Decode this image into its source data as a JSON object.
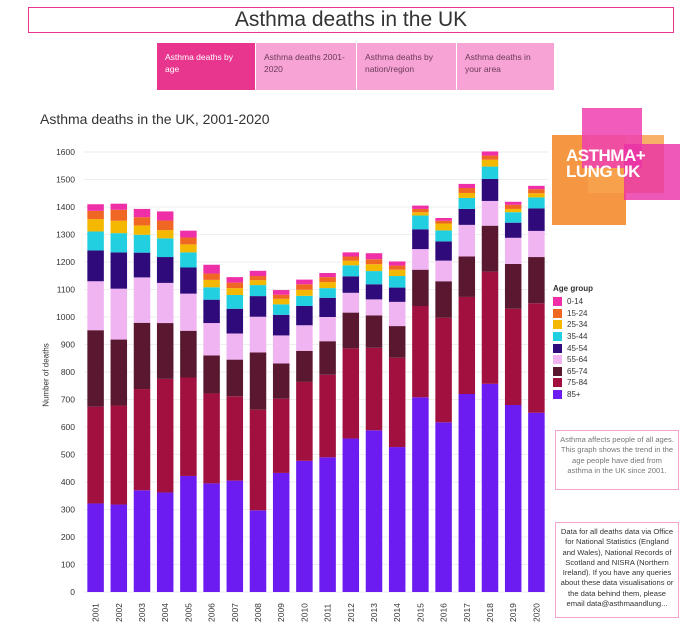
{
  "header": {
    "title": "Asthma deaths in the UK"
  },
  "tabs": [
    {
      "label": "Asthma deaths by age",
      "active": true
    },
    {
      "label": "Asthma deaths 2001-2020",
      "active": false
    },
    {
      "label": "Asthma deaths by nation/region",
      "active": false
    },
    {
      "label": "Asthma deaths in your area",
      "active": false
    }
  ],
  "logo": {
    "text": "ASTHMA+ LUNG UK"
  },
  "notes": {
    "description": "Asthma affects people of all ages. This graph shows the trend in the age people have died from asthma in the UK since 2001.",
    "sources": "Data for all deaths data via Office for National Statistics (England and Wales), National Records of Scotland and NISRA (Northern Ireland). If you have any queries about these data visualisations or the data behind them, please email data@asthmaandlung..."
  },
  "chart_data": {
    "type": "bar",
    "stacked": true,
    "title": "Asthma deaths in the UK, 2001-2020",
    "xlabel": "",
    "ylabel": "Number of deaths",
    "ylim": [
      0,
      1600
    ],
    "yticks": [
      0,
      100,
      200,
      300,
      400,
      500,
      600,
      700,
      800,
      900,
      1000,
      1100,
      1200,
      1300,
      1400,
      1500,
      1600
    ],
    "grid": true,
    "legend_title": "Age group",
    "legend_position": "right",
    "categories": [
      "2001",
      "2002",
      "2003",
      "2004",
      "2005",
      "2006",
      "2007",
      "2008",
      "2009",
      "2010",
      "2011",
      "2012",
      "2013",
      "2014",
      "2015",
      "2016",
      "2017",
      "2018",
      "2019",
      "2020"
    ],
    "series": [
      {
        "name": "85+",
        "color": "#6c1cf0",
        "values": [
          322,
          318,
          370,
          362,
          422,
          395,
          405,
          297,
          433,
          477,
          490,
          558,
          588,
          527,
          708,
          617,
          720,
          757,
          680,
          652
        ]
      },
      {
        "name": "75-84",
        "color": "#a1103e",
        "values": [
          352,
          360,
          368,
          413,
          358,
          327,
          307,
          366,
          270,
          287,
          300,
          328,
          300,
          325,
          332,
          380,
          353,
          408,
          350,
          398
        ]
      },
      {
        "name": "65-74",
        "color": "#5a1730",
        "values": [
          278,
          240,
          241,
          203,
          170,
          138,
          133,
          208,
          128,
          113,
          122,
          130,
          118,
          115,
          132,
          133,
          147,
          167,
          163,
          168
        ]
      },
      {
        "name": "55-64",
        "color": "#f0b4f2",
        "values": [
          178,
          185,
          165,
          146,
          135,
          118,
          95,
          130,
          102,
          93,
          88,
          72,
          58,
          88,
          75,
          75,
          115,
          90,
          95,
          95
        ]
      },
      {
        "name": "45-54",
        "color": "#2f0a7a",
        "values": [
          112,
          132,
          90,
          94,
          95,
          85,
          90,
          75,
          75,
          70,
          70,
          60,
          55,
          52,
          72,
          70,
          58,
          80,
          55,
          82
        ]
      },
      {
        "name": "35-44",
        "color": "#22cfe0",
        "values": [
          69,
          70,
          65,
          68,
          55,
          45,
          50,
          40,
          38,
          37,
          35,
          40,
          48,
          42,
          50,
          40,
          40,
          45,
          38,
          40
        ]
      },
      {
        "name": "25-34",
        "color": "#f5b800",
        "values": [
          45,
          45,
          34,
          30,
          29,
          27,
          25,
          18,
          20,
          22,
          22,
          17,
          25,
          23,
          12,
          25,
          18,
          25,
          12,
          15
        ]
      },
      {
        "name": "15-24",
        "color": "#f06623",
        "values": [
          30,
          40,
          30,
          35,
          25,
          23,
          20,
          15,
          15,
          20,
          18,
          15,
          18,
          15,
          12,
          10,
          18,
          15,
          15,
          15
        ]
      },
      {
        "name": "0-14",
        "color": "#ee2fa8",
        "values": [
          24,
          22,
          30,
          33,
          25,
          32,
          20,
          19,
          17,
          17,
          15,
          15,
          22,
          15,
          12,
          10,
          15,
          15,
          11,
          12
        ]
      }
    ]
  }
}
